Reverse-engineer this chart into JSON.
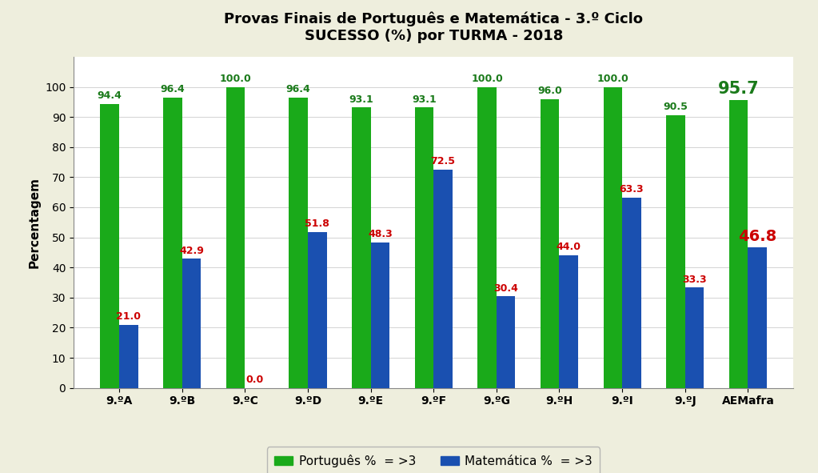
{
  "title_line1": "Provas Finais de Português e Matemática - 3.º Ciclo",
  "title_line2": "SUCESSO (%) por TURMA - 2018",
  "categories": [
    "9.ºA",
    "9.ºB",
    "9.ºC",
    "9.ºD",
    "9.ºE",
    "9.ºF",
    "9.ºG",
    "9.ºH",
    "9.ºI",
    "9.ºJ",
    "AEMafra"
  ],
  "portugues": [
    94.4,
    96.4,
    100.0,
    96.4,
    93.1,
    93.1,
    100.0,
    96.0,
    100.0,
    90.5,
    95.7
  ],
  "matematica": [
    21.0,
    42.9,
    0.0,
    51.8,
    48.3,
    72.5,
    30.4,
    44.0,
    63.3,
    33.3,
    46.8
  ],
  "bar_color_port": "#1aaa1a",
  "bar_color_mat": "#1a50b0",
  "label_color_port": "#1a7a1a",
  "label_color_mat": "#cc0000",
  "background_color": "#eeeedd",
  "plot_bg_color": "#ffffff",
  "ylabel": "Percentagem",
  "ylim": [
    0,
    110
  ],
  "yticks": [
    0,
    10,
    20,
    30,
    40,
    50,
    60,
    70,
    80,
    90,
    100
  ],
  "legend_port": "Português %  = >3",
  "legend_mat": "Matemática %  = >3",
  "bar_width": 0.3,
  "title_fontsize": 13,
  "label_fontsize": 9,
  "tick_fontsize": 10,
  "ylabel_fontsize": 11,
  "aemafra_port_fontsize": 15,
  "aemafra_mat_fontsize": 14,
  "legend_fontsize": 11
}
